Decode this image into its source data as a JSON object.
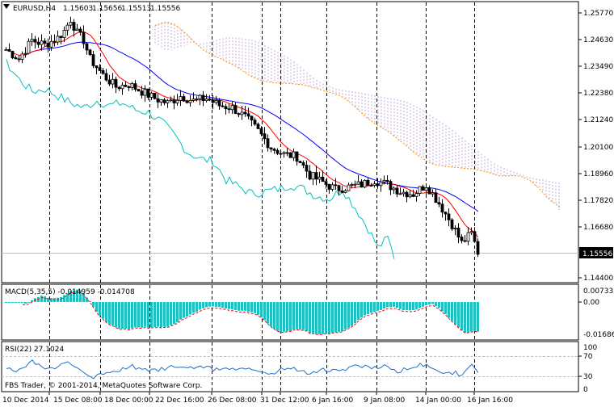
{
  "header": {
    "symbol_label": "EURUSD,H4",
    "open": "1.15603",
    "high": "1.15656",
    "low": "1.15513",
    "close": "1.15556"
  },
  "main_panel": {
    "price_labels": [
      "1.25770",
      "1.24630",
      "1.23490",
      "1.22380",
      "1.21240",
      "1.20100",
      "1.18960",
      "1.17820",
      "1.16680",
      "1.14400"
    ],
    "current_price": "1.15556"
  },
  "macd_panel": {
    "label": "MACD(5,35,5) -0.014959 -0.014708",
    "scale_labels": [
      "0.007335",
      "0.00",
      "-0.016862"
    ]
  },
  "rsi_panel": {
    "label": "RSI(22) 27.1024",
    "scale_labels": [
      "100",
      "70",
      "30",
      "0"
    ]
  },
  "time_labels": [
    "10 Dec 2014",
    "15 Dec 08:00",
    "18 Dec 00:00",
    "22 Dec 16:00",
    "26 Dec 08:00",
    "31 Dec 12:00",
    "6 Jan 16:00",
    "9 Jan 08:00",
    "14 Jan 00:00",
    "16 Jan 16:00"
  ],
  "watermark": "FBS Trader, © 2001-2014, MetaQuotes Software Corp.",
  "colors": {
    "candle": "#000000",
    "tenkan": "#ff0000",
    "kijun": "#0000ff",
    "chikou": "#00c0c0",
    "senkou_a": "#ff8c00",
    "cloud": "#bfa5d8",
    "macd_hist": "#20c0c0",
    "macd_signal": "#ff0000",
    "rsi_line": "#1e6ec8",
    "grid_dashes": "#000000",
    "level_lines": "#c0c0c0"
  },
  "chart_data": {
    "type": "candlestick",
    "symbol": "EURUSD",
    "timeframe": "H4",
    "price_range": [
      1.144,
      1.2577
    ],
    "approx_close_path": [
      [
        0,
        1.242
      ],
      [
        4,
        1.238
      ],
      [
        8,
        1.246
      ],
      [
        12,
        1.244
      ],
      [
        16,
        1.247
      ],
      [
        18,
        1.25
      ],
      [
        20,
        1.255
      ],
      [
        22,
        1.249
      ],
      [
        24,
        1.246
      ],
      [
        26,
        1.238
      ],
      [
        30,
        1.231
      ],
      [
        34,
        1.226
      ],
      [
        38,
        1.227
      ],
      [
        42,
        1.224
      ],
      [
        46,
        1.221
      ],
      [
        50,
        1.219
      ],
      [
        54,
        1.222
      ],
      [
        58,
        1.22
      ],
      [
        62,
        1.221
      ],
      [
        66,
        1.218
      ],
      [
        70,
        1.217
      ],
      [
        74,
        1.213
      ],
      [
        78,
        1.207
      ],
      [
        82,
        1.2
      ],
      [
        86,
        1.197
      ],
      [
        90,
        1.196
      ],
      [
        94,
        1.188
      ],
      [
        98,
        1.185
      ],
      [
        102,
        1.182
      ],
      [
        106,
        1.183
      ],
      [
        110,
        1.184
      ],
      [
        114,
        1.186
      ],
      [
        118,
        1.184
      ],
      [
        122,
        1.181
      ],
      [
        126,
        1.18
      ],
      [
        130,
        1.184
      ],
      [
        134,
        1.176
      ],
      [
        138,
        1.167
      ],
      [
        141,
        1.159
      ],
      [
        144,
        1.163
      ],
      [
        146,
        1.155
      ]
    ],
    "macd": {
      "current": -0.014959,
      "signal": -0.014708,
      "range": [
        -0.016862,
        0.007335
      ]
    },
    "rsi": {
      "period": 22,
      "current": 27.1024,
      "levels": [
        30,
        70
      ]
    }
  }
}
